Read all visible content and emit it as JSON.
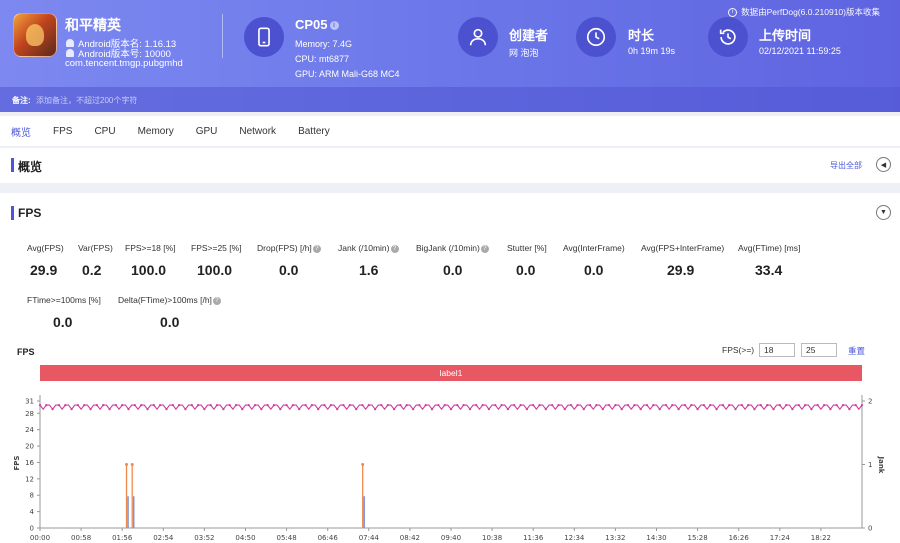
{
  "app": {
    "name": "和平精英",
    "android_version_name": "Android版本名: 1.16.13",
    "android_version_code": "Android版本号: 10000",
    "package": "com.tencent.tmgp.pubgmhd"
  },
  "device": {
    "name": "CP05",
    "memory": "Memory: 7.4G",
    "cpu": "CPU: mt6877",
    "gpu": "GPU: ARM Mali-G68 MC4"
  },
  "creator": {
    "title": "创建者",
    "value": "网 泡泡"
  },
  "duration": {
    "title": "时长",
    "value": "0h 19m 19s"
  },
  "upload": {
    "title": "上传时间",
    "value": "02/12/2021 11:59:25"
  },
  "source_note": "数据由PerfDog(6.0.210910)版本收集",
  "remark": {
    "label": "备注:",
    "placeholder": "添加备注，不超过200个字符"
  },
  "tabs": [
    "概览",
    "FPS",
    "CPU",
    "Memory",
    "GPU",
    "Network",
    "Battery"
  ],
  "overview": {
    "title": "概览",
    "export_label": "导出全部"
  },
  "fps": {
    "title": "FPS",
    "metrics": [
      {
        "label": "Avg(FPS)",
        "value": "29.9"
      },
      {
        "label": "Var(FPS)",
        "value": "0.2"
      },
      {
        "label": "FPS>=18 [%]",
        "value": "100.0"
      },
      {
        "label": "FPS>=25 [%]",
        "value": "100.0"
      },
      {
        "label": "Drop(FPS) [/h]",
        "value": "0.0"
      },
      {
        "label": "Jank (/10min)",
        "value": "1.6"
      },
      {
        "label": "BigJank (/10min)",
        "value": "0.0"
      },
      {
        "label": "Stutter [%]",
        "value": "0.0"
      },
      {
        "label": "Avg(InterFrame)",
        "value": "0.0"
      },
      {
        "label": "Avg(FPS+InterFrame)",
        "value": "29.9"
      },
      {
        "label": "Avg(FTime) [ms]",
        "value": "33.4"
      },
      {
        "label": "FTime>=100ms [%]",
        "value": "0.0"
      },
      {
        "label": "Delta(FTime)>100ms [/h]",
        "value": "0.0"
      }
    ],
    "threshold_label": "FPS(>=)",
    "threshold_values": [
      "18",
      "25"
    ],
    "reset_label": "重置",
    "label_band": "label1"
  },
  "chart_data": {
    "type": "line",
    "title": "FPS",
    "ylabel": "FPS",
    "y2label": "Jank",
    "ylim": [
      0,
      31
    ],
    "y_ticks": [
      0,
      4,
      8,
      12,
      16,
      20,
      24,
      28,
      31
    ],
    "y2lim": [
      0,
      2
    ],
    "y2_ticks": [
      0,
      1,
      2
    ],
    "x_ticks": [
      "00:00",
      "00:58",
      "01:56",
      "02:54",
      "03:52",
      "04:50",
      "05:48",
      "06:46",
      "07:44",
      "08:42",
      "09:40",
      "10:38",
      "11:36",
      "12:34",
      "13:32",
      "14:30",
      "15:28",
      "16:26",
      "17:24",
      "18:22"
    ],
    "x_range_seconds": [
      0,
      1159
    ],
    "series": [
      {
        "name": "FPS",
        "color": "#cc3fa0",
        "baseline": 30,
        "min_dip": 29
      },
      {
        "name": "Jank",
        "color": "#f08a4b",
        "axis": "right",
        "points": [
          [
            122,
            1
          ],
          [
            130,
            1
          ],
          [
            455,
            1
          ]
        ]
      },
      {
        "name": "BigJank",
        "color": "#7b8ee0",
        "axis": "right",
        "points": [
          [
            122,
            0.5
          ],
          [
            130,
            0.5
          ],
          [
            455,
            0.5
          ]
        ]
      }
    ],
    "colors": {
      "band": "#e85862",
      "accent": "#4b57d8"
    }
  }
}
